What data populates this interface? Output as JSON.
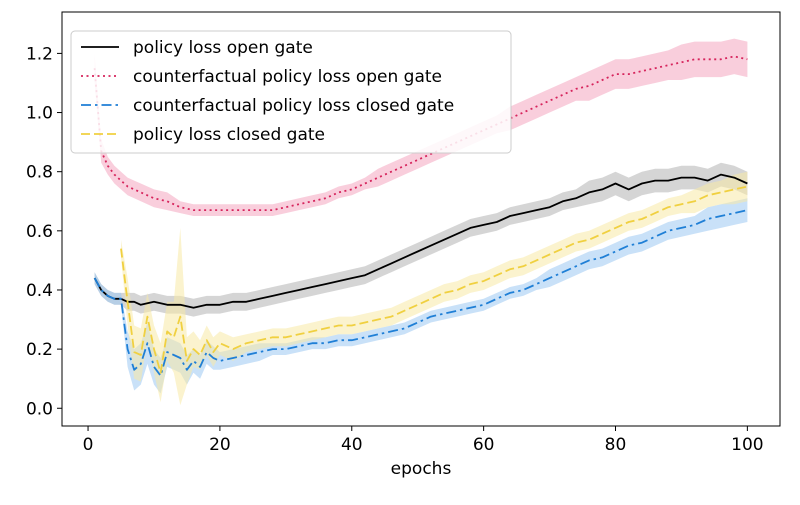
{
  "chart_data": {
    "type": "line",
    "xlabel": "epochs",
    "ylabel": "",
    "xlim": [
      -3.95,
      104.95
    ],
    "ylim": [
      -0.06,
      1.34
    ],
    "x_ticks": [
      0,
      20,
      40,
      60,
      80,
      100
    ],
    "x_tick_labels": [
      "0",
      "20",
      "40",
      "60",
      "80",
      "100"
    ],
    "y_ticks": [
      0.0,
      0.2,
      0.4,
      0.6,
      0.8,
      1.0,
      1.2
    ],
    "y_tick_labels": [
      "0.0",
      "0.2",
      "0.4",
      "0.6",
      "0.8",
      "1.0",
      "1.2"
    ],
    "grid": false,
    "legend_position": "top-left",
    "series": [
      {
        "name": "policy loss open gate",
        "color": "#000000",
        "band_color": "#b3b3b3",
        "style": "solid",
        "x": [
          1,
          2,
          3,
          4,
          5,
          6,
          7,
          8,
          10,
          12,
          14,
          16,
          18,
          20,
          22,
          24,
          26,
          28,
          30,
          32,
          34,
          36,
          38,
          40,
          42,
          44,
          46,
          48,
          50,
          52,
          54,
          56,
          58,
          60,
          62,
          64,
          66,
          68,
          70,
          72,
          74,
          76,
          78,
          80,
          82,
          84,
          86,
          88,
          90,
          92,
          94,
          96,
          98,
          100
        ],
        "y": [
          0.44,
          0.4,
          0.38,
          0.37,
          0.37,
          0.36,
          0.36,
          0.35,
          0.36,
          0.35,
          0.35,
          0.34,
          0.35,
          0.35,
          0.36,
          0.36,
          0.37,
          0.38,
          0.39,
          0.4,
          0.41,
          0.42,
          0.43,
          0.44,
          0.45,
          0.47,
          0.49,
          0.51,
          0.53,
          0.55,
          0.57,
          0.59,
          0.61,
          0.62,
          0.63,
          0.65,
          0.66,
          0.67,
          0.68,
          0.7,
          0.71,
          0.73,
          0.74,
          0.76,
          0.74,
          0.76,
          0.77,
          0.77,
          0.78,
          0.78,
          0.77,
          0.79,
          0.78,
          0.76
        ],
        "band": [
          0.02,
          0.02,
          0.02,
          0.02,
          0.02,
          0.03,
          0.03,
          0.03,
          0.03,
          0.03,
          0.03,
          0.03,
          0.03,
          0.03,
          0.03,
          0.03,
          0.03,
          0.03,
          0.03,
          0.03,
          0.03,
          0.03,
          0.03,
          0.03,
          0.03,
          0.03,
          0.03,
          0.03,
          0.03,
          0.03,
          0.03,
          0.03,
          0.03,
          0.03,
          0.03,
          0.03,
          0.03,
          0.03,
          0.03,
          0.03,
          0.03,
          0.04,
          0.04,
          0.04,
          0.04,
          0.04,
          0.04,
          0.04,
          0.04,
          0.04,
          0.04,
          0.04,
          0.04,
          0.04
        ]
      },
      {
        "name": "counterfactual policy loss open gate",
        "color": "#d6245c",
        "band_color": "#f4a6c0",
        "style": "dotted",
        "x": [
          1,
          2,
          3,
          4,
          5,
          6,
          7,
          8,
          10,
          12,
          14,
          16,
          18,
          20,
          22,
          24,
          26,
          28,
          30,
          32,
          34,
          36,
          38,
          40,
          42,
          44,
          46,
          48,
          50,
          52,
          54,
          56,
          58,
          60,
          62,
          64,
          66,
          68,
          70,
          72,
          74,
          76,
          78,
          80,
          82,
          84,
          86,
          88,
          90,
          92,
          94,
          96,
          98,
          100
        ],
        "y": [
          1.15,
          0.87,
          0.82,
          0.79,
          0.77,
          0.75,
          0.74,
          0.73,
          0.71,
          0.7,
          0.68,
          0.67,
          0.67,
          0.67,
          0.67,
          0.67,
          0.67,
          0.67,
          0.68,
          0.69,
          0.7,
          0.71,
          0.73,
          0.74,
          0.76,
          0.78,
          0.8,
          0.82,
          0.84,
          0.86,
          0.88,
          0.9,
          0.92,
          0.94,
          0.96,
          0.98,
          1.0,
          1.02,
          1.04,
          1.06,
          1.08,
          1.09,
          1.11,
          1.13,
          1.13,
          1.14,
          1.15,
          1.16,
          1.17,
          1.18,
          1.18,
          1.18,
          1.19,
          1.18
        ],
        "band": [
          0.05,
          0.04,
          0.03,
          0.03,
          0.03,
          0.03,
          0.03,
          0.03,
          0.03,
          0.03,
          0.02,
          0.02,
          0.02,
          0.02,
          0.02,
          0.02,
          0.02,
          0.02,
          0.02,
          0.02,
          0.02,
          0.02,
          0.02,
          0.02,
          0.02,
          0.03,
          0.03,
          0.03,
          0.03,
          0.03,
          0.03,
          0.03,
          0.03,
          0.03,
          0.03,
          0.04,
          0.04,
          0.04,
          0.04,
          0.04,
          0.04,
          0.05,
          0.05,
          0.05,
          0.05,
          0.05,
          0.05,
          0.05,
          0.06,
          0.06,
          0.06,
          0.06,
          0.06,
          0.06
        ]
      },
      {
        "name": "counterfactual policy loss closed gate",
        "color": "#1f7fd6",
        "band_color": "#9cc8f2",
        "style": "dashdot",
        "x": [
          1,
          2,
          3,
          4,
          5,
          6,
          7,
          8,
          9,
          10,
          11,
          12,
          13,
          14,
          15,
          16,
          17,
          18,
          19,
          20,
          22,
          24,
          26,
          28,
          30,
          32,
          34,
          36,
          38,
          40,
          42,
          44,
          46,
          48,
          50,
          52,
          54,
          56,
          58,
          60,
          62,
          64,
          66,
          68,
          70,
          72,
          74,
          76,
          78,
          80,
          82,
          84,
          86,
          88,
          90,
          92,
          94,
          96,
          98,
          100
        ],
        "y": [
          0.44,
          0.4,
          0.38,
          0.37,
          0.37,
          0.2,
          0.13,
          0.15,
          0.22,
          0.14,
          0.11,
          0.19,
          0.18,
          0.17,
          0.13,
          0.16,
          0.14,
          0.19,
          0.17,
          0.16,
          0.17,
          0.18,
          0.19,
          0.2,
          0.2,
          0.21,
          0.22,
          0.22,
          0.23,
          0.23,
          0.24,
          0.25,
          0.26,
          0.27,
          0.29,
          0.31,
          0.32,
          0.33,
          0.34,
          0.35,
          0.37,
          0.39,
          0.4,
          0.42,
          0.44,
          0.46,
          0.48,
          0.5,
          0.51,
          0.53,
          0.55,
          0.56,
          0.58,
          0.6,
          0.61,
          0.62,
          0.64,
          0.65,
          0.66,
          0.67
        ],
        "band": [
          0.02,
          0.02,
          0.02,
          0.02,
          0.02,
          0.06,
          0.07,
          0.07,
          0.07,
          0.06,
          0.06,
          0.05,
          0.05,
          0.05,
          0.05,
          0.04,
          0.04,
          0.04,
          0.04,
          0.03,
          0.03,
          0.03,
          0.03,
          0.02,
          0.02,
          0.02,
          0.02,
          0.02,
          0.02,
          0.02,
          0.02,
          0.02,
          0.02,
          0.02,
          0.02,
          0.02,
          0.02,
          0.02,
          0.02,
          0.02,
          0.02,
          0.02,
          0.02,
          0.02,
          0.03,
          0.03,
          0.03,
          0.03,
          0.03,
          0.03,
          0.03,
          0.03,
          0.03,
          0.03,
          0.03,
          0.03,
          0.04,
          0.04,
          0.04,
          0.04
        ]
      },
      {
        "name": "policy loss closed gate",
        "color": "#f0d040",
        "band_color": "#f8eaa6",
        "style": "dashed",
        "x": [
          5,
          6,
          7,
          8,
          9,
          10,
          11,
          12,
          13,
          14,
          15,
          16,
          17,
          18,
          19,
          20,
          22,
          24,
          26,
          28,
          30,
          32,
          34,
          36,
          38,
          40,
          42,
          44,
          46,
          48,
          50,
          52,
          54,
          56,
          58,
          60,
          62,
          64,
          66,
          68,
          70,
          72,
          74,
          76,
          78,
          80,
          82,
          84,
          86,
          88,
          90,
          92,
          94,
          96,
          98,
          100
        ],
        "y": [
          0.54,
          0.36,
          0.19,
          0.18,
          0.31,
          0.2,
          0.12,
          0.26,
          0.24,
          0.31,
          0.16,
          0.2,
          0.18,
          0.23,
          0.19,
          0.22,
          0.2,
          0.22,
          0.23,
          0.24,
          0.24,
          0.25,
          0.26,
          0.27,
          0.28,
          0.28,
          0.29,
          0.3,
          0.31,
          0.33,
          0.35,
          0.37,
          0.39,
          0.4,
          0.42,
          0.43,
          0.45,
          0.47,
          0.48,
          0.5,
          0.52,
          0.54,
          0.56,
          0.57,
          0.59,
          0.61,
          0.63,
          0.64,
          0.66,
          0.68,
          0.69,
          0.7,
          0.72,
          0.73,
          0.74,
          0.75
        ],
        "band": [
          0.03,
          0.08,
          0.09,
          0.09,
          0.08,
          0.08,
          0.1,
          0.1,
          0.12,
          0.3,
          0.08,
          0.06,
          0.05,
          0.05,
          0.05,
          0.04,
          0.04,
          0.03,
          0.03,
          0.03,
          0.03,
          0.03,
          0.03,
          0.03,
          0.03,
          0.03,
          0.03,
          0.03,
          0.03,
          0.03,
          0.03,
          0.03,
          0.03,
          0.03,
          0.03,
          0.03,
          0.03,
          0.03,
          0.03,
          0.03,
          0.03,
          0.03,
          0.03,
          0.03,
          0.03,
          0.03,
          0.03,
          0.03,
          0.03,
          0.03,
          0.03,
          0.04,
          0.04,
          0.04,
          0.05,
          0.05
        ]
      }
    ]
  }
}
